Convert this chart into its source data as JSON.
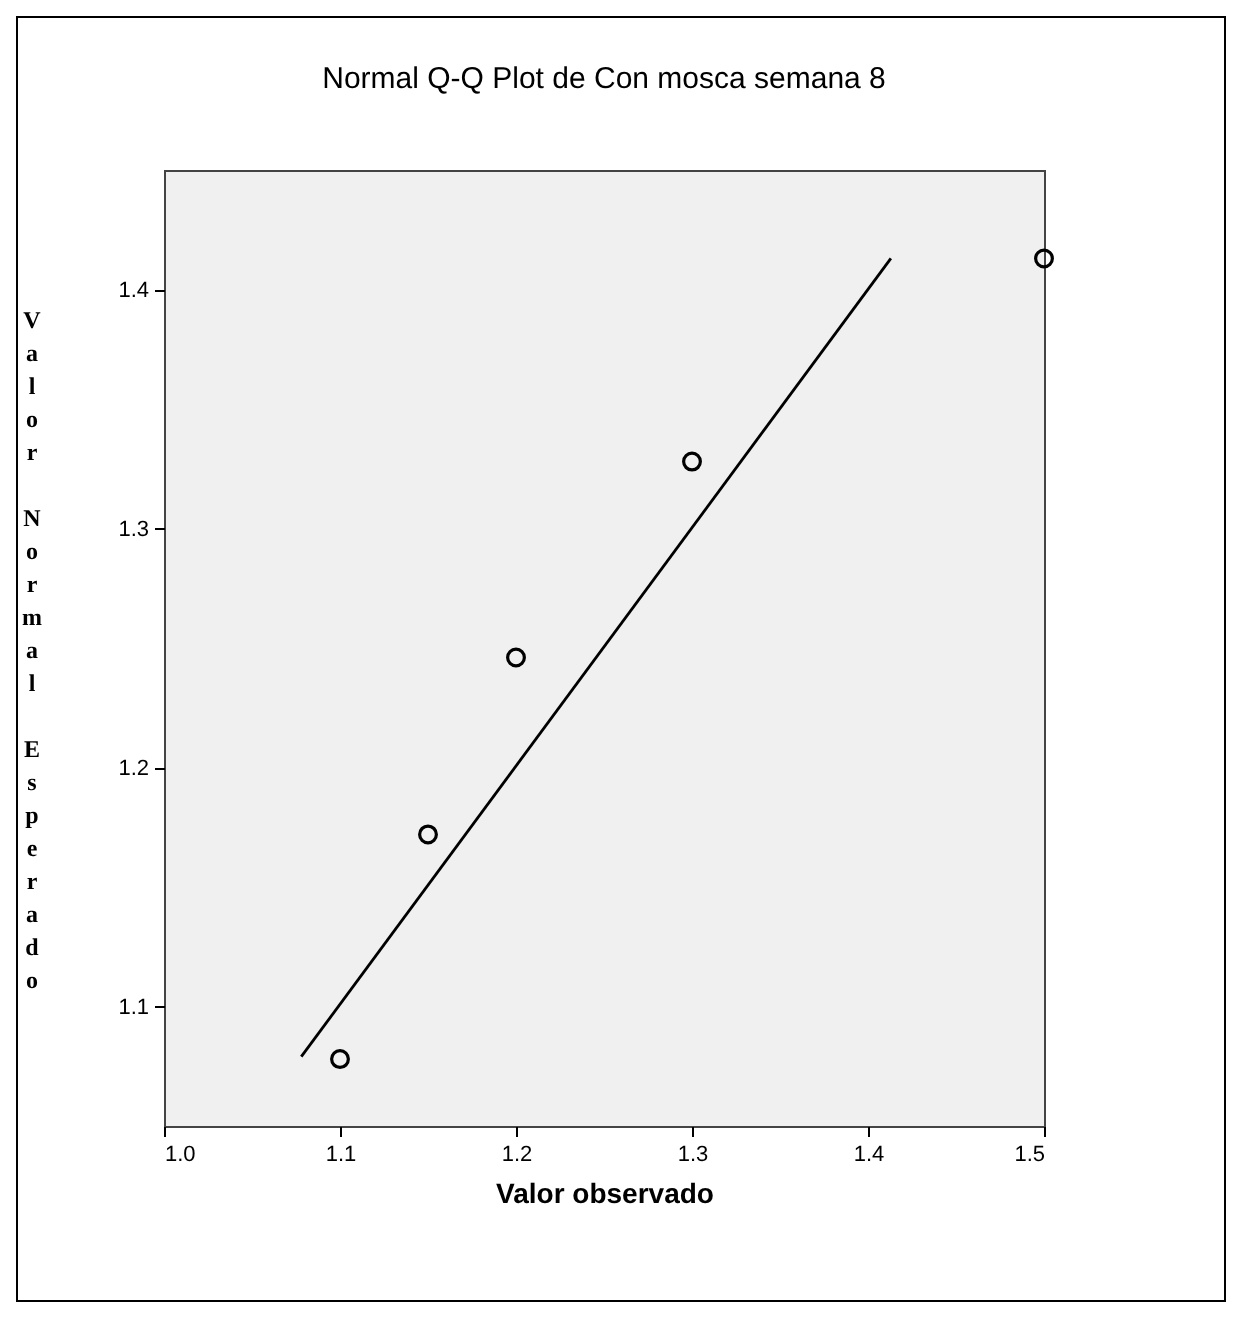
{
  "chart_data": {
    "type": "scatter",
    "title": "Normal Q-Q Plot de Con mosca semana 8",
    "xlabel": "Valor observado",
    "ylabel": "Valor Normal Esperado",
    "xlim": [
      1.0,
      1.5
    ],
    "xticks": [
      {
        "value": 1.0,
        "label": "1.0"
      },
      1.1,
      1.2,
      1.3,
      1.4,
      1.5
    ],
    "ylim": [
      1.05,
      1.45
    ],
    "yticks": [
      1.1,
      1.2,
      1.3,
      1.4
    ],
    "grid": false,
    "marker": "circle",
    "series": [
      {
        "type": "scatter",
        "color": "#000000",
        "x": [
          1.1,
          1.15,
          1.2,
          1.3,
          1.5
        ],
        "values": [
          1.078,
          1.172,
          1.246,
          1.328,
          1.413
        ]
      },
      {
        "type": "line",
        "color": "#000000",
        "marker": "none",
        "x": [
          1.078,
          1.413
        ],
        "values": [
          1.079,
          1.413
        ]
      }
    ]
  }
}
